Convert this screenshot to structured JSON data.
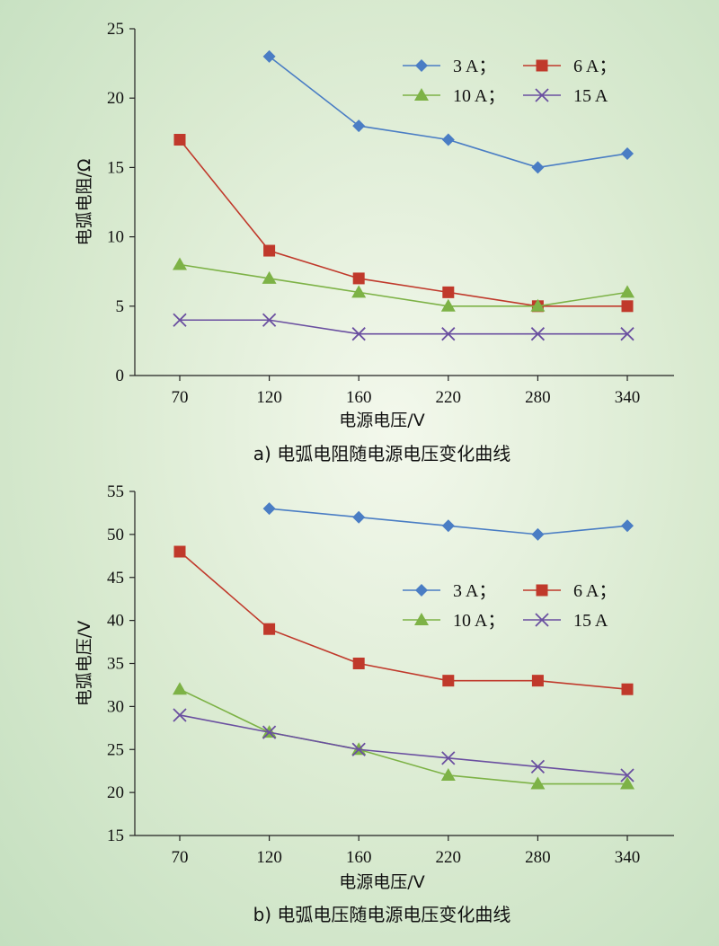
{
  "chart_data": [
    {
      "type": "line",
      "caption": "a) 电弧电阻随电源电压变化曲线",
      "xlabel": "电源电压/V",
      "ylabel": "电弧电阻/Ω",
      "categories": [
        "70",
        "120",
        "160",
        "220",
        "280",
        "340"
      ],
      "ylim": [
        0,
        25
      ],
      "yticks": [
        0,
        5,
        10,
        15,
        20,
        25
      ],
      "legend_position": "top-right",
      "series": [
        {
          "name": "3 A；",
          "marker": "diamond",
          "color": "#4a7dc4",
          "values": [
            null,
            23,
            18,
            17,
            15,
            16
          ]
        },
        {
          "name": "6 A；",
          "marker": "square",
          "color": "#c0392b",
          "values": [
            17,
            9,
            7,
            6,
            5,
            5
          ]
        },
        {
          "name": "10 A；",
          "marker": "triangle",
          "color": "#7db246",
          "values": [
            8,
            7,
            6,
            5,
            5,
            6
          ]
        },
        {
          "name": "15 A",
          "marker": "x",
          "color": "#6a4fa0",
          "values": [
            4,
            4,
            3,
            3,
            3,
            3
          ]
        }
      ]
    },
    {
      "type": "line",
      "caption": "b) 电弧电压随电源电压变化曲线",
      "xlabel": "电源电压/V",
      "ylabel": "电弧电压/V",
      "categories": [
        "70",
        "120",
        "160",
        "220",
        "280",
        "340"
      ],
      "ylim": [
        15,
        55
      ],
      "yticks": [
        15,
        20,
        25,
        30,
        35,
        40,
        45,
        50,
        55
      ],
      "legend_position": "top-right",
      "series": [
        {
          "name": "3 A；",
          "marker": "diamond",
          "color": "#4a7dc4",
          "values": [
            null,
            53,
            52,
            51,
            50,
            51
          ]
        },
        {
          "name": "6 A；",
          "marker": "square",
          "color": "#c0392b",
          "values": [
            48,
            39,
            35,
            33,
            33,
            32
          ]
        },
        {
          "name": "10 A；",
          "marker": "triangle",
          "color": "#7db246",
          "values": [
            32,
            27,
            25,
            22,
            21,
            21
          ]
        },
        {
          "name": "15 A",
          "marker": "x",
          "color": "#6a4fa0",
          "values": [
            29,
            27,
            25,
            24,
            23,
            22
          ]
        }
      ]
    }
  ]
}
